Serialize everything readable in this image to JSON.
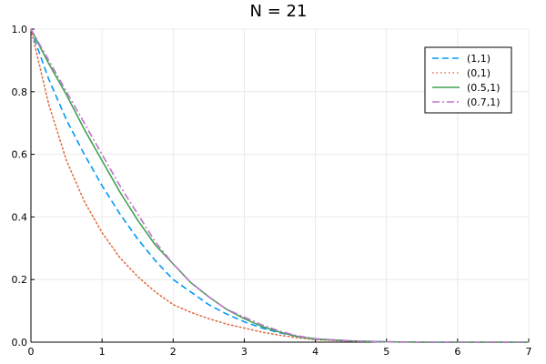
{
  "chart_data": {
    "type": "line",
    "title": "N = 21",
    "xlabel": "",
    "ylabel": "",
    "xlim": [
      0,
      7
    ],
    "ylim": [
      0,
      1.0
    ],
    "x_ticks": [
      0,
      1,
      2,
      3,
      4,
      5,
      6,
      7
    ],
    "y_ticks": [
      0.0,
      0.2,
      0.4,
      0.6,
      0.8,
      1.0
    ],
    "x_tick_labels": [
      "0",
      "1",
      "2",
      "3",
      "4",
      "5",
      "6",
      "7"
    ],
    "y_tick_labels": [
      "0.0",
      "0.2",
      "0.4",
      "0.6",
      "0.8",
      "1.0"
    ],
    "grid": true,
    "legend_position": "top-right",
    "series": [
      {
        "name": "(1,1)",
        "color": "#009AFA",
        "dash": "dashed",
        "x": [
          0,
          0.25,
          0.5,
          0.75,
          1,
          1.25,
          1.5,
          1.75,
          2,
          2.25,
          2.5,
          2.75,
          3,
          3.25,
          3.5,
          3.75,
          4,
          4.5,
          5,
          5.5,
          6,
          6.5,
          7
        ],
        "y": [
          1.0,
          0.84,
          0.71,
          0.6,
          0.5,
          0.41,
          0.33,
          0.26,
          0.2,
          0.16,
          0.12,
          0.09,
          0.065,
          0.045,
          0.03,
          0.018,
          0.01,
          0.004,
          0.001,
          0.0,
          0.0,
          0.0,
          0.0
        ]
      },
      {
        "name": "(0,1)",
        "color": "#E36F47",
        "dash": "dotted",
        "x": [
          0,
          0.25,
          0.5,
          0.75,
          1,
          1.25,
          1.5,
          1.75,
          2,
          2.25,
          2.5,
          2.75,
          3,
          3.25,
          3.5,
          3.75,
          4,
          4.5,
          5,
          5.5,
          6,
          6.5,
          7
        ],
        "y": [
          1.0,
          0.76,
          0.58,
          0.45,
          0.35,
          0.27,
          0.21,
          0.16,
          0.12,
          0.095,
          0.075,
          0.058,
          0.045,
          0.032,
          0.022,
          0.014,
          0.008,
          0.003,
          0.001,
          0.0,
          0.0,
          0.0,
          0.0
        ]
      },
      {
        "name": "(0.5,1)",
        "color": "#3EA44E",
        "dash": "solid",
        "x": [
          0,
          0.25,
          0.5,
          0.75,
          1,
          1.25,
          1.5,
          1.75,
          2,
          2.25,
          2.5,
          2.75,
          3,
          3.25,
          3.5,
          3.75,
          4,
          4.5,
          5,
          5.5,
          6,
          6.5,
          7
        ],
        "y": [
          1.0,
          0.89,
          0.79,
          0.68,
          0.58,
          0.48,
          0.39,
          0.31,
          0.25,
          0.19,
          0.145,
          0.105,
          0.075,
          0.05,
          0.032,
          0.018,
          0.01,
          0.004,
          0.001,
          0.0,
          0.0,
          0.0,
          0.0
        ]
      },
      {
        "name": "(0.7,1)",
        "color": "#C271D2",
        "dash": "dashdot",
        "x": [
          0,
          0.25,
          0.5,
          0.75,
          1,
          1.25,
          1.5,
          1.75,
          2,
          2.25,
          2.5,
          2.75,
          3,
          3.25,
          3.5,
          3.75,
          4,
          4.5,
          5,
          5.5,
          6,
          6.5,
          7
        ],
        "y": [
          1.0,
          0.9,
          0.8,
          0.7,
          0.6,
          0.5,
          0.41,
          0.32,
          0.25,
          0.19,
          0.145,
          0.105,
          0.08,
          0.055,
          0.035,
          0.02,
          0.011,
          0.004,
          0.001,
          0.0,
          0.0,
          0.0,
          0.0
        ]
      }
    ]
  }
}
